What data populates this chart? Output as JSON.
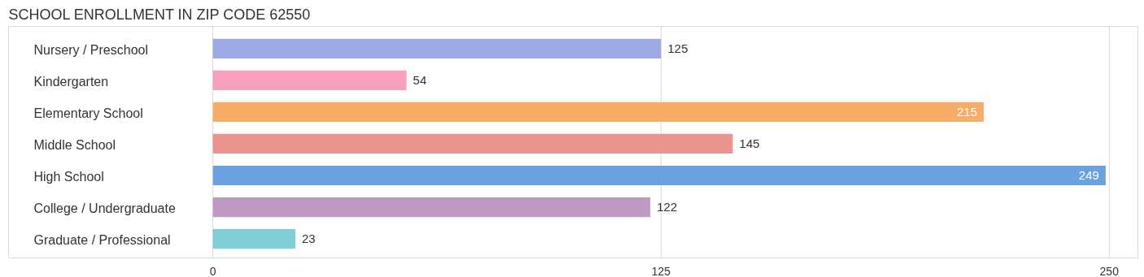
{
  "chart_data": {
    "type": "bar",
    "orientation": "horizontal",
    "title": "SCHOOL ENROLLMENT IN ZIP CODE 62550",
    "categories": [
      "Nursery / Preschool",
      "Kindergarten",
      "Elementary School",
      "Middle School",
      "High School",
      "College / Undergraduate",
      "Graduate / Professional"
    ],
    "values": [
      125,
      54,
      215,
      145,
      249,
      122,
      23
    ],
    "colors": [
      "#9eaae6",
      "#f6a0bd",
      "#f7ad67",
      "#eb938e",
      "#6aa1de",
      "#bf9bc4",
      "#80cfd6"
    ],
    "xlim": [
      -57,
      258
    ],
    "xticks": [
      0,
      125,
      250
    ],
    "grid": "x",
    "data_labels": true,
    "tick_labels": "x"
  }
}
